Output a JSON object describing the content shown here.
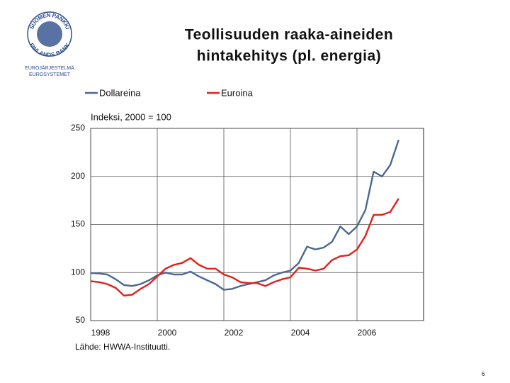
{
  "logo": {
    "ring_top": "SUOMEN PANKKI",
    "ring_bottom": "FINLANDS BANK",
    "line1": "EUROJÄRJESTELMÄ",
    "line2": "EUROSYSTEMET"
  },
  "chart_data": {
    "type": "line",
    "title": [
      "Teollisuuden raaka-aineiden",
      "hintakehitys (pl. energia)"
    ],
    "y_label": "Indeksi, 2000 = 100",
    "source": "Lähde: HWWA-Instituutti.",
    "page_number": "6",
    "x": [
      1998,
      1998.25,
      1998.5,
      1998.75,
      1999,
      1999.25,
      1999.5,
      1999.75,
      2000,
      2000.25,
      2000.5,
      2000.75,
      2001,
      2001.25,
      2001.5,
      2001.75,
      2002,
      2002.25,
      2002.5,
      2002.75,
      2003,
      2003.25,
      2003.5,
      2003.75,
      2004,
      2004.25,
      2004.5,
      2004.75,
      2005,
      2005.25,
      2005.5,
      2005.75,
      2006,
      2006.25,
      2006.5,
      2006.75,
      2007,
      2007.25
    ],
    "series": [
      {
        "name": "Dollareina",
        "color": "#4a6890",
        "values": [
          99.5,
          99,
          98,
          93,
          87,
          86,
          88,
          92,
          97,
          100,
          98,
          98,
          101,
          96,
          92,
          88,
          82,
          83,
          86,
          88,
          90,
          92,
          97,
          100,
          102,
          110,
          127,
          124,
          126,
          132,
          148,
          140,
          148,
          165,
          205,
          200,
          212,
          238
        ]
      },
      {
        "name": "Euroina",
        "color": "#e0201c",
        "values": [
          91,
          90,
          88,
          84,
          76,
          77,
          83,
          88,
          96,
          104,
          108,
          110,
          115,
          108,
          104,
          104,
          98,
          95,
          90,
          89,
          89,
          86,
          90,
          93,
          95,
          105,
          104,
          102,
          104,
          113,
          117,
          118,
          124,
          138,
          160,
          160,
          163,
          177
        ]
      }
    ],
    "xlim": [
      1998,
      2008
    ],
    "xticks": [
      1998,
      2000,
      2002,
      2004,
      2006
    ],
    "ylim": [
      50,
      250
    ],
    "yticks": [
      50,
      100,
      150,
      200,
      250
    ],
    "grid": true,
    "legend": "top"
  }
}
